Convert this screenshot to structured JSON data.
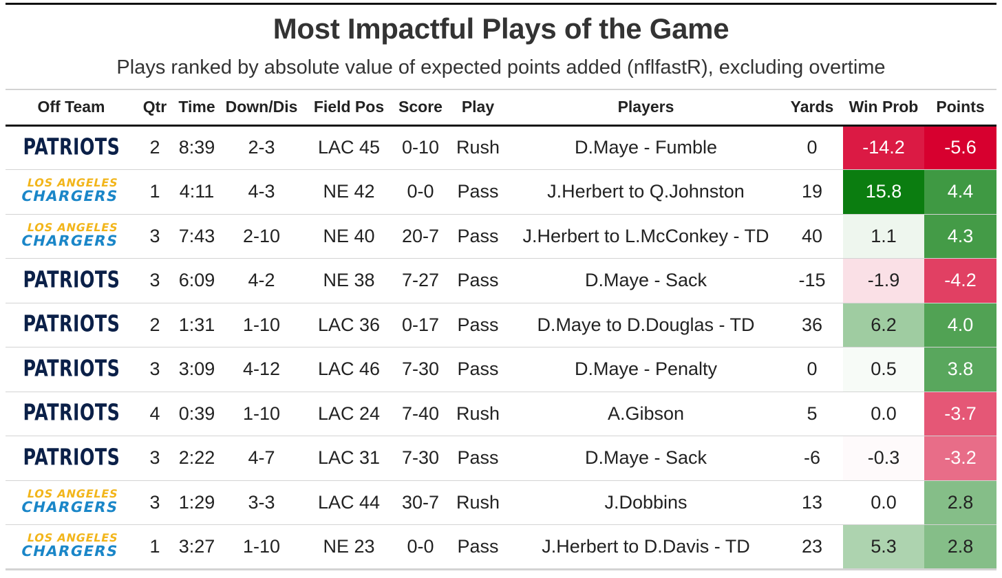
{
  "title": "Most Impactful Plays of the Game",
  "subtitle": "Plays ranked by absolute value of expected points added (nflfastR), excluding overtime",
  "columns": [
    "Off Team",
    "Qtr",
    "Time",
    "Down/Dis",
    "Field Pos",
    "Score",
    "Play",
    "Players",
    "Yards",
    "Win Prob",
    "Points"
  ],
  "teams": {
    "NE": {
      "logo_text": "PATRIOTS",
      "color": "#0b2048"
    },
    "LAC": {
      "logo_line1": "LOS ANGELES",
      "logo_line2": "CHARGERS",
      "color_primary": "#1a86c8",
      "color_secondary": "#f2b51a"
    }
  },
  "colors": {
    "strong_red": "#d7002f",
    "strong_green": "#0b7d10",
    "neutral": "#ffffff"
  },
  "chart_data": {
    "type": "table",
    "title": "Most Impactful Plays of the Game",
    "subtitle": "Plays ranked by absolute value of expected points added (nflfastR), excluding overtime",
    "columns": [
      "Off Team",
      "Qtr",
      "Time",
      "Down/Dis",
      "Field Pos",
      "Score",
      "Play",
      "Players",
      "Yards",
      "Win Prob",
      "Points"
    ],
    "rows": [
      {
        "team": "NE",
        "qtr": "2",
        "time": "8:39",
        "down_dis": "2-3",
        "field_pos": "LAC 45",
        "score": "0-10",
        "play": "Rush",
        "players": "D.Maye - Fumble",
        "yards": "0",
        "win_prob": "-14.2",
        "points": "-5.6"
      },
      {
        "team": "LAC",
        "qtr": "1",
        "time": "4:11",
        "down_dis": "4-3",
        "field_pos": "NE 42",
        "score": "0-0",
        "play": "Pass",
        "players": "J.Herbert to Q.Johnston",
        "yards": "19",
        "win_prob": "15.8",
        "points": "4.4"
      },
      {
        "team": "LAC",
        "qtr": "3",
        "time": "7:43",
        "down_dis": "2-10",
        "field_pos": "NE 40",
        "score": "20-7",
        "play": "Pass",
        "players": "J.Herbert to L.McConkey - TD",
        "yards": "40",
        "win_prob": "1.1",
        "points": "4.3"
      },
      {
        "team": "NE",
        "qtr": "3",
        "time": "6:09",
        "down_dis": "4-2",
        "field_pos": "NE 38",
        "score": "7-27",
        "play": "Pass",
        "players": "D.Maye - Sack",
        "yards": "-15",
        "win_prob": "-1.9",
        "points": "-4.2"
      },
      {
        "team": "NE",
        "qtr": "2",
        "time": "1:31",
        "down_dis": "1-10",
        "field_pos": "LAC 36",
        "score": "0-17",
        "play": "Pass",
        "players": "D.Maye to D.Douglas - TD",
        "yards": "36",
        "win_prob": "6.2",
        "points": "4.0"
      },
      {
        "team": "NE",
        "qtr": "3",
        "time": "3:09",
        "down_dis": "4-12",
        "field_pos": "LAC 46",
        "score": "7-30",
        "play": "Pass",
        "players": "D.Maye - Penalty",
        "yards": "0",
        "win_prob": "0.5",
        "points": "3.8"
      },
      {
        "team": "NE",
        "qtr": "4",
        "time": "0:39",
        "down_dis": "1-10",
        "field_pos": "LAC 24",
        "score": "7-40",
        "play": "Rush",
        "players": "A.Gibson",
        "yards": "5",
        "win_prob": "0.0",
        "points": "-3.7"
      },
      {
        "team": "NE",
        "qtr": "3",
        "time": "2:22",
        "down_dis": "4-7",
        "field_pos": "LAC 31",
        "score": "7-30",
        "play": "Pass",
        "players": "D.Maye - Sack",
        "yards": "-6",
        "win_prob": "-0.3",
        "points": "-3.2"
      },
      {
        "team": "LAC",
        "qtr": "3",
        "time": "1:29",
        "down_dis": "3-3",
        "field_pos": "LAC 44",
        "score": "30-7",
        "play": "Rush",
        "players": "J.Dobbins",
        "yards": "13",
        "win_prob": "0.0",
        "points": "2.8"
      },
      {
        "team": "LAC",
        "qtr": "1",
        "time": "3:27",
        "down_dis": "1-10",
        "field_pos": "NE 23",
        "score": "0-0",
        "play": "Pass",
        "players": "J.Herbert to D.Davis - TD",
        "yards": "23",
        "win_prob": "5.3",
        "points": "2.8"
      }
    ]
  }
}
